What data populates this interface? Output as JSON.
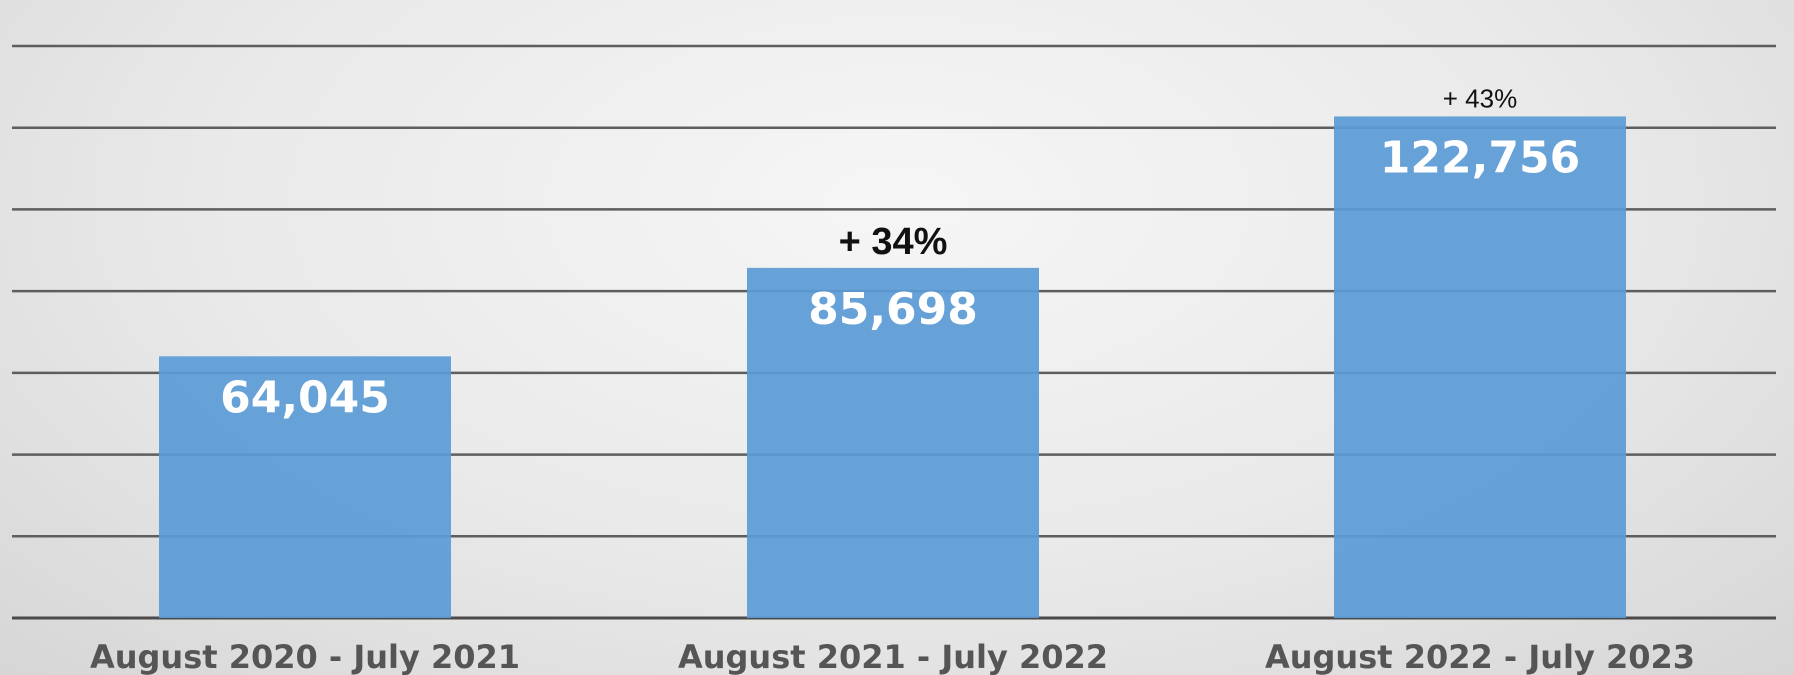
{
  "chart_data": {
    "type": "bar",
    "categories": [
      "August 2020 - July 2021",
      "August 2021 - July 2022",
      "August 2022 - July 2023"
    ],
    "values": [
      64045,
      85698,
      122756
    ],
    "data_labels": [
      "64,045",
      "85,698",
      "122,756"
    ],
    "growth_labels": [
      "",
      "+ 34%",
      "+ 43%"
    ],
    "ylim": [
      0,
      140000
    ],
    "gridline_step": 20000,
    "grid": true,
    "bar_color": "#5b9bd5"
  }
}
